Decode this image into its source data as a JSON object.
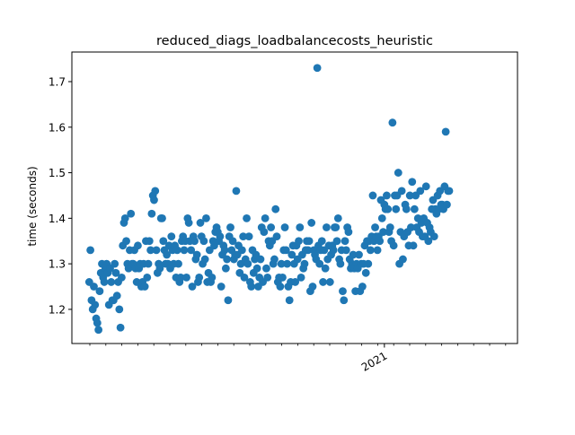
{
  "chart_data": {
    "type": "scatter",
    "title": "reduced_diags_loadbalancecosts_heuristic",
    "xlabel": "",
    "ylabel": "time (seconds)",
    "ylim": [
      1.125,
      1.765
    ],
    "grid": false,
    "marker_color": "#1f77b4",
    "yticks": [
      1.2,
      1.3,
      1.4,
      1.5,
      1.6,
      1.7
    ],
    "ytick_labels": [
      "1.2",
      "1.3",
      "1.4",
      "1.5",
      "1.6",
      "1.7"
    ],
    "xtick_labels": [
      {
        "label": "2021",
        "x_index": 255
      }
    ],
    "x_index_range": [
      -15,
      370
    ],
    "x_unit": "sample index (dates not labeled except 2021)",
    "points": [
      [
        0,
        1.26
      ],
      [
        1,
        1.33
      ],
      [
        2,
        1.22
      ],
      [
        3,
        1.2
      ],
      [
        4,
        1.25
      ],
      [
        5,
        1.21
      ],
      [
        6,
        1.18
      ],
      [
        7,
        1.17
      ],
      [
        8,
        1.155
      ],
      [
        9,
        1.24
      ],
      [
        10,
        1.28
      ],
      [
        11,
        1.3
      ],
      [
        12,
        1.27
      ],
      [
        13,
        1.26
      ],
      [
        14,
        1.29
      ],
      [
        15,
        1.3
      ],
      [
        16,
        1.28
      ],
      [
        17,
        1.21
      ],
      [
        18,
        1.29
      ],
      [
        19,
        1.26
      ],
      [
        20,
        1.22
      ],
      [
        21,
        1.22
      ],
      [
        22,
        1.3
      ],
      [
        23,
        1.28
      ],
      [
        24,
        1.23
      ],
      [
        25,
        1.26
      ],
      [
        26,
        1.2
      ],
      [
        27,
        1.16
      ],
      [
        28,
        1.27
      ],
      [
        29,
        1.34
      ],
      [
        30,
        1.39
      ],
      [
        31,
        1.4
      ],
      [
        32,
        1.35
      ],
      [
        33,
        1.3
      ],
      [
        34,
        1.29
      ],
      [
        35,
        1.33
      ],
      [
        36,
        1.41
      ],
      [
        37,
        1.3
      ],
      [
        38,
        1.3
      ],
      [
        39,
        1.33
      ],
      [
        40,
        1.29
      ],
      [
        41,
        1.26
      ],
      [
        42,
        1.34
      ],
      [
        43,
        1.29
      ],
      [
        44,
        1.3
      ],
      [
        45,
        1.25
      ],
      [
        46,
        1.26
      ],
      [
        47,
        1.3
      ],
      [
        48,
        1.25
      ],
      [
        49,
        1.35
      ],
      [
        50,
        1.27
      ],
      [
        51,
        1.3
      ],
      [
        52,
        1.35
      ],
      [
        53,
        1.33
      ],
      [
        54,
        1.41
      ],
      [
        55,
        1.45
      ],
      [
        56,
        1.44
      ],
      [
        57,
        1.46
      ],
      [
        58,
        1.33
      ],
      [
        59,
        1.28
      ],
      [
        60,
        1.3
      ],
      [
        61,
        1.29
      ],
      [
        62,
        1.4
      ],
      [
        63,
        1.4
      ],
      [
        64,
        1.35
      ],
      [
        65,
        1.33
      ],
      [
        66,
        1.3
      ],
      [
        67,
        1.32
      ],
      [
        68,
        1.3
      ],
      [
        69,
        1.34
      ],
      [
        70,
        1.29
      ],
      [
        71,
        1.36
      ],
      [
        72,
        1.33
      ],
      [
        73,
        1.3
      ],
      [
        74,
        1.34
      ],
      [
        75,
        1.27
      ],
      [
        76,
        1.33
      ],
      [
        77,
        1.3
      ],
      [
        78,
        1.26
      ],
      [
        79,
        1.27
      ],
      [
        80,
        1.35
      ],
      [
        81,
        1.36
      ],
      [
        82,
        1.33
      ],
      [
        83,
        1.35
      ],
      [
        84,
        1.27
      ],
      [
        85,
        1.4
      ],
      [
        86,
        1.39
      ],
      [
        87,
        1.35
      ],
      [
        88,
        1.33
      ],
      [
        89,
        1.25
      ],
      [
        90,
        1.36
      ],
      [
        91,
        1.35
      ],
      [
        92,
        1.31
      ],
      [
        93,
        1.32
      ],
      [
        94,
        1.26
      ],
      [
        95,
        1.27
      ],
      [
        96,
        1.39
      ],
      [
        97,
        1.36
      ],
      [
        98,
        1.3
      ],
      [
        99,
        1.35
      ],
      [
        100,
        1.31
      ],
      [
        101,
        1.4
      ],
      [
        102,
        1.26
      ],
      [
        103,
        1.28
      ],
      [
        104,
        1.33
      ],
      [
        105,
        1.26
      ],
      [
        106,
        1.27
      ],
      [
        107,
        1.35
      ],
      [
        108,
        1.34
      ],
      [
        109,
        1.37
      ],
      [
        110,
        1.38
      ],
      [
        111,
        1.37
      ],
      [
        112,
        1.35
      ],
      [
        113,
        1.36
      ],
      [
        114,
        1.25
      ],
      [
        115,
        1.32
      ],
      [
        116,
        1.34
      ],
      [
        117,
        1.33
      ],
      [
        118,
        1.29
      ],
      [
        119,
        1.31
      ],
      [
        120,
        1.22
      ],
      [
        121,
        1.36
      ],
      [
        122,
        1.38
      ],
      [
        123,
        1.33
      ],
      [
        124,
        1.35
      ],
      [
        125,
        1.31
      ],
      [
        126,
        1.32
      ],
      [
        127,
        1.46
      ],
      [
        128,
        1.32
      ],
      [
        129,
        1.34
      ],
      [
        130,
        1.28
      ],
      [
        131,
        1.3
      ],
      [
        132,
        1.33
      ],
      [
        133,
        1.36
      ],
      [
        134,
        1.27
      ],
      [
        135,
        1.31
      ],
      [
        136,
        1.4
      ],
      [
        137,
        1.3
      ],
      [
        138,
        1.36
      ],
      [
        139,
        1.26
      ],
      [
        140,
        1.25
      ],
      [
        141,
        1.33
      ],
      [
        142,
        1.28
      ],
      [
        143,
        1.31
      ],
      [
        144,
        1.32
      ],
      [
        145,
        1.29
      ],
      [
        146,
        1.25
      ],
      [
        147,
        1.27
      ],
      [
        148,
        1.31
      ],
      [
        149,
        1.38
      ],
      [
        150,
        1.26
      ],
      [
        151,
        1.37
      ],
      [
        152,
        1.4
      ],
      [
        153,
        1.29
      ],
      [
        154,
        1.27
      ],
      [
        155,
        1.35
      ],
      [
        156,
        1.34
      ],
      [
        157,
        1.38
      ],
      [
        158,
        1.35
      ],
      [
        159,
        1.3
      ],
      [
        160,
        1.31
      ],
      [
        161,
        1.42
      ],
      [
        162,
        1.36
      ],
      [
        163,
        1.26
      ],
      [
        164,
        1.27
      ],
      [
        165,
        1.25
      ],
      [
        166,
        1.3
      ],
      [
        167,
        1.27
      ],
      [
        168,
        1.33
      ],
      [
        169,
        1.38
      ],
      [
        170,
        1.33
      ],
      [
        171,
        1.3
      ],
      [
        172,
        1.25
      ],
      [
        173,
        1.22
      ],
      [
        174,
        1.26
      ],
      [
        175,
        1.32
      ],
      [
        176,
        1.34
      ],
      [
        177,
        1.3
      ],
      [
        178,
        1.26
      ],
      [
        179,
        1.34
      ],
      [
        180,
        1.31
      ],
      [
        181,
        1.35
      ],
      [
        182,
        1.38
      ],
      [
        183,
        1.27
      ],
      [
        184,
        1.32
      ],
      [
        185,
        1.29
      ],
      [
        186,
        1.3
      ],
      [
        187,
        1.33
      ],
      [
        188,
        1.35
      ],
      [
        189,
        1.33
      ],
      [
        190,
        1.35
      ],
      [
        191,
        1.24
      ],
      [
        192,
        1.39
      ],
      [
        193,
        1.25
      ],
      [
        194,
        1.33
      ],
      [
        195,
        1.32
      ],
      [
        196,
        1.31
      ],
      [
        197,
        1.73
      ],
      [
        198,
        1.34
      ],
      [
        199,
        1.3
      ],
      [
        200,
        1.33
      ],
      [
        201,
        1.35
      ],
      [
        202,
        1.26
      ],
      [
        203,
        1.33
      ],
      [
        204,
        1.29
      ],
      [
        205,
        1.38
      ],
      [
        206,
        1.31
      ],
      [
        207,
        1.34
      ],
      [
        208,
        1.26
      ],
      [
        209,
        1.32
      ],
      [
        210,
        1.34
      ],
      [
        211,
        1.33
      ],
      [
        212,
        1.38
      ],
      [
        213,
        1.38
      ],
      [
        214,
        1.35
      ],
      [
        215,
        1.4
      ],
      [
        216,
        1.31
      ],
      [
        217,
        1.3
      ],
      [
        218,
        1.33
      ],
      [
        219,
        1.24
      ],
      [
        220,
        1.22
      ],
      [
        221,
        1.35
      ],
      [
        222,
        1.33
      ],
      [
        223,
        1.38
      ],
      [
        224,
        1.37
      ],
      [
        225,
        1.31
      ],
      [
        226,
        1.29
      ],
      [
        227,
        1.3
      ],
      [
        228,
        1.32
      ],
      [
        229,
        1.29
      ],
      [
        230,
        1.24
      ],
      [
        231,
        1.3
      ],
      [
        232,
        1.29
      ],
      [
        233,
        1.32
      ],
      [
        234,
        1.24
      ],
      [
        235,
        1.3
      ],
      [
        236,
        1.25
      ],
      [
        237,
        1.3
      ],
      [
        238,
        1.34
      ],
      [
        239,
        1.28
      ],
      [
        240,
        1.35
      ],
      [
        241,
        1.3
      ],
      [
        242,
        1.35
      ],
      [
        243,
        1.33
      ],
      [
        244,
        1.36
      ],
      [
        245,
        1.45
      ],
      [
        246,
        1.35
      ],
      [
        247,
        1.38
      ],
      [
        248,
        1.36
      ],
      [
        249,
        1.33
      ],
      [
        250,
        1.36
      ],
      [
        251,
        1.35
      ],
      [
        252,
        1.44
      ],
      [
        253,
        1.4
      ],
      [
        254,
        1.37
      ],
      [
        255,
        1.43
      ],
      [
        256,
        1.42
      ],
      [
        257,
        1.45
      ],
      [
        258,
        1.42
      ],
      [
        259,
        1.37
      ],
      [
        260,
        1.38
      ],
      [
        261,
        1.35
      ],
      [
        262,
        1.61
      ],
      [
        263,
        1.34
      ],
      [
        264,
        1.45
      ],
      [
        265,
        1.42
      ],
      [
        266,
        1.45
      ],
      [
        267,
        1.5
      ],
      [
        268,
        1.3
      ],
      [
        269,
        1.37
      ],
      [
        270,
        1.46
      ],
      [
        271,
        1.31
      ],
      [
        272,
        1.36
      ],
      [
        273,
        1.43
      ],
      [
        274,
        1.42
      ],
      [
        275,
        1.37
      ],
      [
        276,
        1.34
      ],
      [
        277,
        1.45
      ],
      [
        278,
        1.38
      ],
      [
        279,
        1.48
      ],
      [
        280,
        1.34
      ],
      [
        281,
        1.42
      ],
      [
        282,
        1.45
      ],
      [
        283,
        1.38
      ],
      [
        284,
        1.4
      ],
      [
        285,
        1.37
      ],
      [
        286,
        1.46
      ],
      [
        287,
        1.39
      ],
      [
        288,
        1.36
      ],
      [
        289,
        1.4
      ],
      [
        290,
        1.36
      ],
      [
        291,
        1.47
      ],
      [
        292,
        1.39
      ],
      [
        293,
        1.35
      ],
      [
        294,
        1.38
      ],
      [
        295,
        1.37
      ],
      [
        296,
        1.42
      ],
      [
        297,
        1.44
      ],
      [
        298,
        1.36
      ],
      [
        299,
        1.42
      ],
      [
        300,
        1.41
      ],
      [
        301,
        1.45
      ],
      [
        302,
        1.42
      ],
      [
        303,
        1.46
      ],
      [
        304,
        1.43
      ],
      [
        305,
        1.43
      ],
      [
        306,
        1.42
      ],
      [
        307,
        1.47
      ],
      [
        308,
        1.59
      ],
      [
        309,
        1.43
      ],
      [
        310,
        1.46
      ],
      [
        311,
        1.46
      ]
    ]
  }
}
